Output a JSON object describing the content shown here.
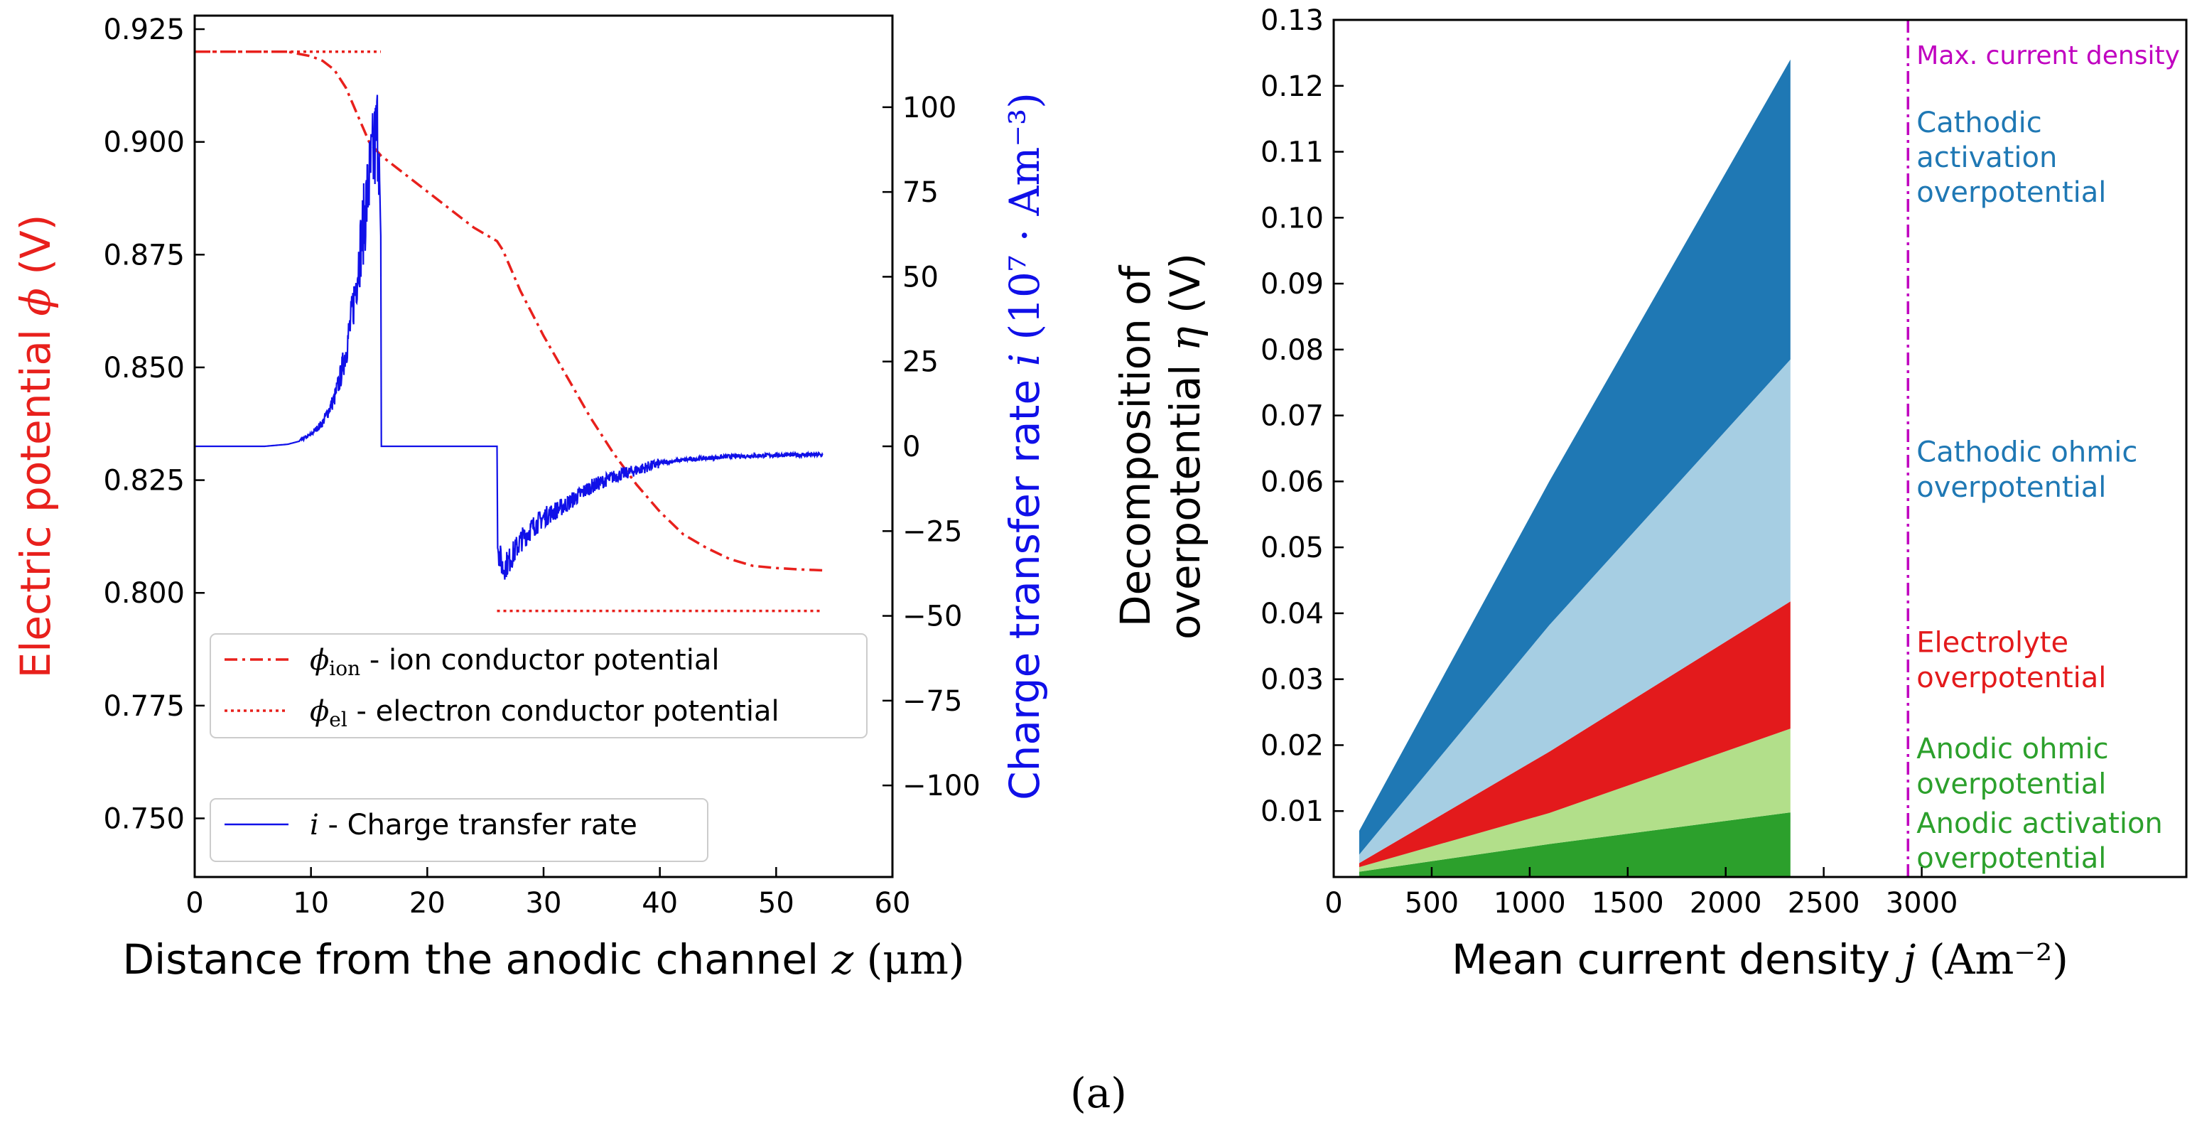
{
  "caption": "(a)",
  "chart_data": [
    {
      "type": "line",
      "xlabel_prefix": "Distance from the anodic channel ",
      "xlabel_var": "z",
      "xlabel_unit": "(μm)",
      "ylabel_left_prefix": "Electric potential ",
      "ylabel_left_var": "ϕ",
      "ylabel_left_unit": "(V)",
      "ylabel_right_prefix": "Charge transfer rate ",
      "ylabel_right_var": "i",
      "ylabel_right_unit": "(10⁷ · Am⁻³)",
      "xlim": [
        0,
        60
      ],
      "ylim_left": [
        0.737,
        0.928
      ],
      "ylim_right": [
        -127,
        127
      ],
      "xticks": [
        "0",
        "10",
        "20",
        "30",
        "40",
        "50",
        "60"
      ],
      "yticks_left": [
        "0.750",
        "0.775",
        "0.800",
        "0.825",
        "0.850",
        "0.875",
        "0.900",
        "0.925"
      ],
      "yticks_right": [
        "−100",
        "−75",
        "−50",
        "−25",
        "0",
        "25",
        "50",
        "75",
        "100"
      ],
      "colors": {
        "ion": "#e8201c",
        "el": "#e8201c",
        "rate": "#1010e8"
      },
      "legend": [
        {
          "sym": "ϕ",
          "sub": "ion",
          "text": " - ion conductor potential"
        },
        {
          "sym": "ϕ",
          "sub": "el",
          "text": " - electron conductor potential"
        },
        {
          "sym": "i",
          "sub": "",
          "text": " - Charge transfer rate"
        }
      ],
      "series": [
        {
          "key": "phi_ion",
          "axis": "left",
          "style": "dashdot",
          "x": [
            0,
            4,
            8,
            10,
            11,
            12,
            13,
            14,
            15,
            15.5,
            16,
            17,
            18,
            20,
            22,
            24,
            26,
            26.5,
            27,
            28,
            30,
            32,
            34,
            36,
            38,
            40,
            42,
            44,
            46,
            48,
            50,
            52,
            54
          ],
          "y": [
            0.92,
            0.92,
            0.92,
            0.919,
            0.918,
            0.916,
            0.912,
            0.906,
            0.9,
            0.8985,
            0.897,
            0.895,
            0.893,
            0.889,
            0.885,
            0.881,
            0.878,
            0.876,
            0.873,
            0.867,
            0.857,
            0.848,
            0.839,
            0.831,
            0.824,
            0.818,
            0.813,
            0.81,
            0.8075,
            0.806,
            0.8055,
            0.8052,
            0.805
          ]
        },
        {
          "key": "phi_el_anode",
          "axis": "left",
          "style": "dotted",
          "x": [
            0,
            16
          ],
          "y": [
            0.92,
            0.92
          ]
        },
        {
          "key": "phi_el_cathode",
          "axis": "left",
          "style": "dotted",
          "x": [
            26,
            54
          ],
          "y": [
            0.796,
            0.796
          ]
        },
        {
          "key": "rate",
          "axis": "right",
          "style": "solid",
          "x": [
            0,
            6,
            8,
            9,
            10,
            11,
            12,
            12.5,
            13,
            13.5,
            14,
            14.5,
            15,
            15.5,
            15.8,
            16,
            16.05,
            20,
            26,
            26.05,
            26.5,
            27,
            28,
            29,
            30,
            32,
            34,
            36,
            38,
            40,
            42,
            44,
            46,
            48,
            50,
            52,
            54
          ],
          "y": [
            0,
            0,
            0.6,
            1.5,
            3.5,
            7,
            14,
            20,
            28,
            38,
            52,
            65,
            78,
            88,
            95,
            62,
            0,
            0,
            0,
            -30,
            -36,
            -34,
            -28,
            -24,
            -21,
            -17,
            -12,
            -9,
            -7,
            -5,
            -4,
            -3.5,
            -3,
            -2.8,
            -2.6,
            -2.5,
            -2.5
          ]
        }
      ]
    },
    {
      "type": "area",
      "xlabel_prefix": "Mean current density ",
      "xlabel_var": "j",
      "xlabel_unit": "(Am⁻²)",
      "ylabel_line1": "Decomposition of",
      "ylabel_line2_prefix": "overpotential ",
      "ylabel_line2_var": "η",
      "ylabel_line2_unit": " (V)",
      "xlim": [
        0,
        4350
      ],
      "ylim": [
        0,
        0.13
      ],
      "xticks": [
        "0",
        "500",
        "1000",
        "1500",
        "2000",
        "2500",
        "3000"
      ],
      "yticks": [
        "0.01",
        "0.02",
        "0.03",
        "0.04",
        "0.05",
        "0.06",
        "0.07",
        "0.08",
        "0.09",
        "0.10",
        "0.11",
        "0.12",
        "0.13"
      ],
      "x": [
        130,
        1100,
        2330
      ],
      "stacks": [
        {
          "name": "Anodic activation overpotential",
          "color": "#2ca02c",
          "values": [
            0.0008,
            0.005,
            0.0098
          ]
        },
        {
          "name": "Anodic ohmic overpotential",
          "color": "#b2df8a",
          "values": [
            0.0007,
            0.0047,
            0.0127
          ]
        },
        {
          "name": "Electrolyte overpotential",
          "color": "#e31a1c",
          "values": [
            0.0006,
            0.0093,
            0.0193
          ]
        },
        {
          "name": "Cathodic ohmic overpotential",
          "color": "#a6cee3",
          "values": [
            0.0013,
            0.0192,
            0.0367
          ]
        },
        {
          "name": "Cathodic activation overpotential",
          "color": "#1f78b4",
          "values": [
            0.0036,
            0.0218,
            0.0455
          ]
        }
      ],
      "max_current": {
        "x": 2930,
        "label": "Max. current density",
        "color": "#c000c0"
      },
      "annotations": [
        {
          "key": "cathodic_act",
          "lines": [
            "Cathodic",
            "activation",
            "overpotential"
          ],
          "color": "#1f78b4"
        },
        {
          "key": "cathodic_ohm",
          "lines": [
            "Cathodic ohmic",
            "overpotential"
          ],
          "color": "#1f78b4"
        },
        {
          "key": "electrolyte",
          "lines": [
            "Electrolyte",
            "overpotential"
          ],
          "color": "#e31a1c"
        },
        {
          "key": "anodic_ohm",
          "lines": [
            "Anodic ohmic",
            "overpotential"
          ],
          "color": "#2ca02c"
        },
        {
          "key": "anodic_act",
          "lines": [
            "Anodic activation",
            "overpotential"
          ],
          "color": "#2ca02c"
        }
      ]
    }
  ]
}
